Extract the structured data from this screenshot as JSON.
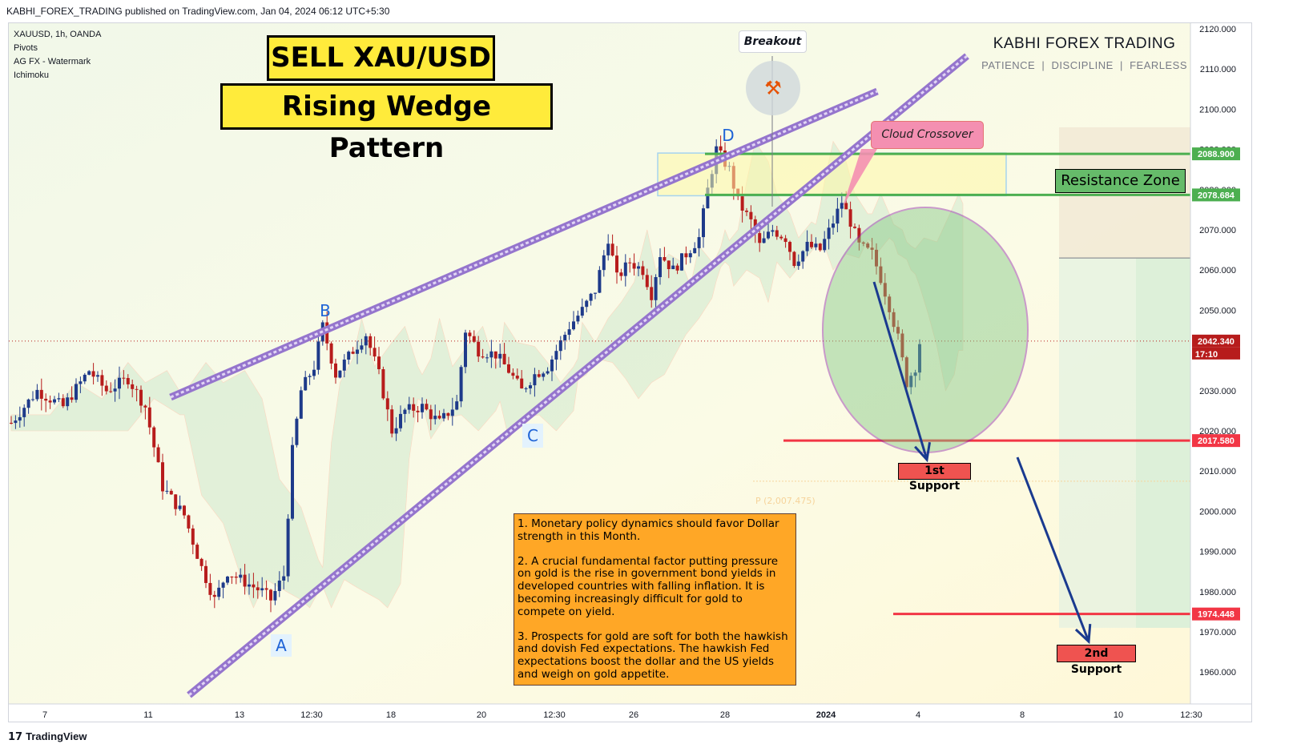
{
  "header": {
    "published_line": "KABHI_FOREX_TRADING published on TradingView.com, Jan 04, 2024 06:12 UTC+5:30"
  },
  "symbol": {
    "line": "XAUUSD, 1h, OANDA",
    "indicators": [
      "Pivots",
      "AG FX - Watermark",
      "Ichimoku"
    ]
  },
  "titles": {
    "sell": "SELL XAU/USD",
    "pattern": "Rising Wedge Pattern"
  },
  "brand": {
    "name": "KABHI FOREX TRADING",
    "tagline": "PATIENCE  |  DISCIPLINE  |  FEARLESS"
  },
  "annotations": {
    "breakout": "Breakout",
    "cloud_crossover": "Cloud Crossover",
    "resistance_zone": "Resistance Zone",
    "support_1": "1st Support",
    "support_2": "2nd Support",
    "pivot_label": "P (2,007.475)",
    "points": {
      "a": "A",
      "b": "B",
      "c": "C",
      "d": "D"
    }
  },
  "notes": [
    "1. Monetary policy dynamics should favor Dollar strength in this Month.",
    "2. A crucial fundamental factor putting pressure on gold is the rise in government bond yields in developed countries with falling inflation. It is becoming increasingly difficult for gold to compete on yield.",
    "3. Prospects for gold are soft for both the hawkish and dovish Fed expectations. The hawkish Fed expectations boost the dollar and the US yields and weigh on gold appetite."
  ],
  "footer": {
    "logo": "17",
    "text": "TradingView"
  },
  "colors": {
    "up": "#26a69a",
    "down": "#ef5350",
    "candle_up_body": "#1e3a8a",
    "candle_down_body": "#b71c1c",
    "resistance_line": "#4caf50",
    "support_line": "#f23645",
    "wedge": "#9575cd",
    "title_bg": "#ffeb3b",
    "notes_bg": "#ffa726",
    "arrow": "#1a3a8f"
  },
  "chart_data": {
    "type": "candlestick",
    "symbol": "XAUUSD",
    "timeframe": "1h",
    "ylim": [
      1960,
      2122
    ],
    "y_ticks": [
      2120,
      2110,
      2100,
      2090,
      2080,
      2070,
      2060,
      2050,
      2040,
      2030,
      2020,
      2010,
      2000,
      1990,
      1980,
      1970,
      1960
    ],
    "y_tick_labels": [
      "2120.000",
      "2110.000",
      "2100.000",
      "2090.000",
      "2080.000",
      "2070.000",
      "2060.000",
      "2050.000",
      "2040.000",
      "2030.000",
      "2020.000",
      "2010.000",
      "2000.000",
      "1990.000",
      "1980.000",
      "1970.000",
      "1960.000"
    ],
    "x_tick_labels": [
      "7",
      "11",
      "13",
      "12:30",
      "18",
      "20",
      "12:30",
      "26",
      "28",
      "2024",
      "4",
      "8",
      "10",
      "12:30"
    ],
    "price_labels": {
      "resistance_top": "2088.900",
      "resistance_bottom": "2078.684",
      "current": "2042.340",
      "countdown": "17:10",
      "support_1": "2017.580",
      "support_2": "1974.448"
    },
    "levels": {
      "resistance_top": 2088.9,
      "resistance_bottom": 2078.684,
      "current": 2042.34,
      "support_1": 2017.58,
      "support_2": 1974.448,
      "pivot": 2007.475
    },
    "price_path": [
      [
        0,
        2022
      ],
      [
        6,
        2030
      ],
      [
        12,
        2026
      ],
      [
        18,
        2035
      ],
      [
        22,
        2030
      ],
      [
        27,
        2033
      ],
      [
        31,
        2026
      ],
      [
        35,
        2006
      ],
      [
        40,
        1999
      ],
      [
        44,
        1986
      ],
      [
        47,
        1978
      ],
      [
        50,
        1985
      ],
      [
        53,
        1983
      ],
      [
        58,
        1980
      ],
      [
        60,
        1978
      ],
      [
        63,
        1984
      ],
      [
        65,
        2015
      ],
      [
        67,
        2030
      ],
      [
        70,
        2036
      ],
      [
        72,
        2046
      ],
      [
        75,
        2034
      ],
      [
        79,
        2040
      ],
      [
        82,
        2044
      ],
      [
        85,
        2034
      ],
      [
        88,
        2020
      ],
      [
        91,
        2025
      ],
      [
        95,
        2026
      ],
      [
        99,
        2022
      ],
      [
        103,
        2027
      ],
      [
        105,
        2045
      ],
      [
        108,
        2040
      ],
      [
        112,
        2039
      ],
      [
        115,
        2035
      ],
      [
        118,
        2030
      ],
      [
        121,
        2034
      ],
      [
        124,
        2036
      ],
      [
        127,
        2042
      ],
      [
        129,
        2046
      ],
      [
        132,
        2050
      ],
      [
        135,
        2055
      ],
      [
        138,
        2068
      ],
      [
        140,
        2058
      ],
      [
        143,
        2062
      ],
      [
        146,
        2060
      ],
      [
        148,
        2054
      ],
      [
        150,
        2064
      ],
      [
        153,
        2060
      ],
      [
        156,
        2064
      ],
      [
        159,
        2068
      ],
      [
        161,
        2080
      ],
      [
        163,
        2090
      ],
      [
        166,
        2085
      ],
      [
        168,
        2077
      ],
      [
        171,
        2072
      ],
      [
        173,
        2066
      ],
      [
        176,
        2070
      ],
      [
        179,
        2068
      ],
      [
        181,
        2062
      ],
      [
        184,
        2066
      ],
      [
        187,
        2065
      ],
      [
        190,
        2072
      ],
      [
        192,
        2077
      ],
      [
        194,
        2072
      ],
      [
        196,
        2066
      ],
      [
        199,
        2064
      ],
      [
        201,
        2058
      ],
      [
        203,
        2051
      ],
      [
        205,
        2043
      ],
      [
        207,
        2032
      ],
      [
        209,
        2036
      ],
      [
        210,
        2042
      ]
    ],
    "ichimoku_cloud": "shown",
    "wedge_points": {
      "A": 1974,
      "B": 2048,
      "C": 2030,
      "D": 2089
    }
  }
}
